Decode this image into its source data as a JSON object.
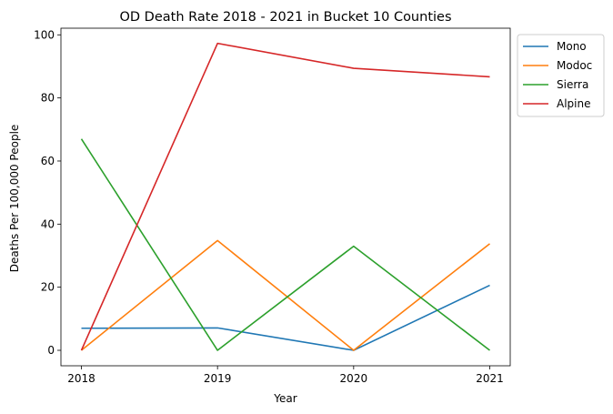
{
  "chart_data": {
    "type": "line",
    "title": "OD Death Rate 2018 - 2021 in Bucket 10 Counties",
    "xlabel": "Year",
    "ylabel": "Deaths Per 100,000 People",
    "x": [
      "2018",
      "2019",
      "2020",
      "2021"
    ],
    "ylim": [
      -4.9,
      102.1
    ],
    "yticks": [
      "0",
      "20",
      "40",
      "60",
      "80",
      "100"
    ],
    "grid": false,
    "legend_position": "outside top-right",
    "series": [
      {
        "name": "Mono",
        "color": "#1f77b4",
        "values": [
          7.0,
          7.1,
          0.0,
          20.6
        ]
      },
      {
        "name": "Modoc",
        "color": "#ff7f0e",
        "values": [
          0.0,
          34.8,
          0.0,
          33.8
        ]
      },
      {
        "name": "Sierra",
        "color": "#2ca02c",
        "values": [
          67.0,
          0.0,
          33.0,
          0.0
        ]
      },
      {
        "name": "Alpine",
        "color": "#d62728",
        "values": [
          0.0,
          97.3,
          89.4,
          86.7
        ]
      }
    ]
  }
}
